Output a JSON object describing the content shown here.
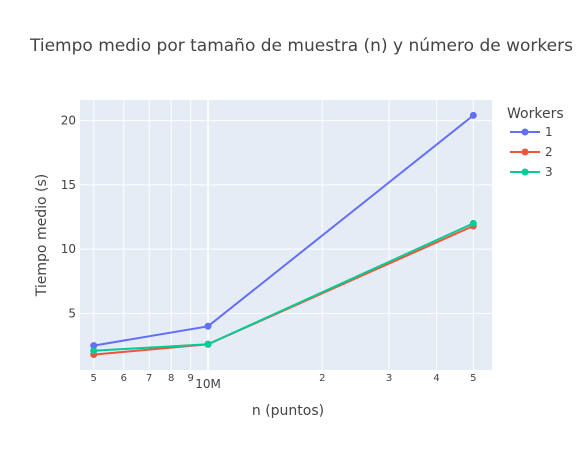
{
  "chart_data": {
    "type": "line",
    "title": "Tiempo medio por tamaño de muestra (n) y número de workers",
    "xlabel": "n (puntos)",
    "ylabel": "Tiempo medio (s)",
    "x_scale": "log",
    "xlim": [
      4600000,
      56000000
    ],
    "ylim": [
      0.6,
      21.6
    ],
    "x_ticks": [
      {
        "value": 5000000,
        "label": "5"
      },
      {
        "value": 6000000,
        "label": "6"
      },
      {
        "value": 7000000,
        "label": "7"
      },
      {
        "value": 8000000,
        "label": "8"
      },
      {
        "value": 9000000,
        "label": "9"
      },
      {
        "value": 10000000,
        "label": "10M"
      },
      {
        "value": 20000000,
        "label": "2"
      },
      {
        "value": 30000000,
        "label": "3"
      },
      {
        "value": 40000000,
        "label": "4"
      },
      {
        "value": 50000000,
        "label": "5"
      }
    ],
    "y_ticks": [
      5,
      10,
      15,
      20
    ],
    "grid": true,
    "legend": {
      "title": "Workers",
      "position": "right"
    },
    "x": [
      5000000,
      10000000,
      50000000
    ],
    "series": [
      {
        "name": "1",
        "color": "#636efa",
        "values": [
          2.5,
          4.0,
          20.4
        ]
      },
      {
        "name": "2",
        "color": "#ef553b",
        "values": [
          1.8,
          2.6,
          11.8
        ]
      },
      {
        "name": "3",
        "color": "#00cc96",
        "values": [
          2.1,
          2.6,
          12.0
        ]
      }
    ]
  }
}
